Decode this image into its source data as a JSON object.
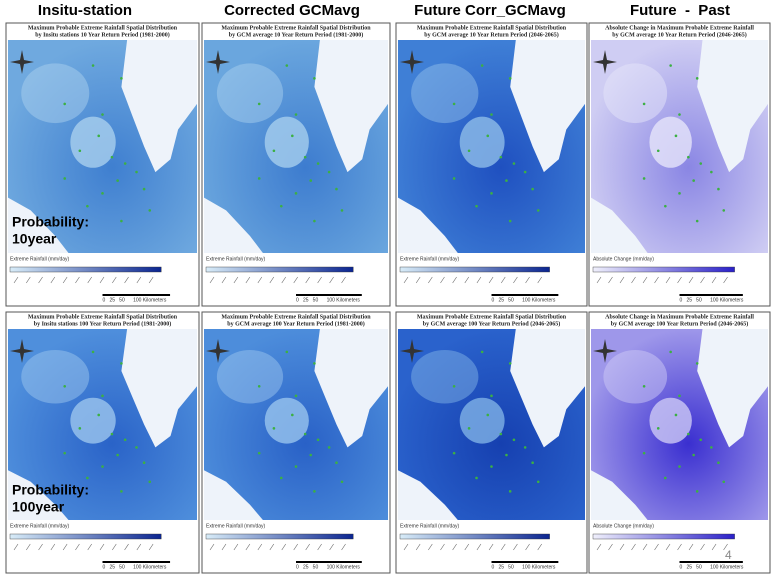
{
  "headers": [
    "Insitu-station",
    "Corrected GCMavg",
    "Future Corr_GCMavg",
    "Future  -  Past"
  ],
  "row_labels": [
    [
      "Probability:",
      "10year"
    ],
    [
      "Probability:",
      "100year"
    ]
  ],
  "page_number": "4",
  "panels": [
    {
      "title": [
        "Maximum Probable Extreme Rainfall Spatial Distribution",
        "by Insitu stations  10  Year Return Period (1981-2000)"
      ],
      "legend_title": "Extreme Rainfall (mm/day)",
      "scale_label": "0   25   50      100 Kilometers",
      "color": "#6fa9df",
      "light": "#a9d0ee",
      "dark": "#3f7fd0"
    },
    {
      "title": [
        "Maximum Probable Extreme Rainfall Spatial Distribution",
        "by GCM average  10  Year Return Period (1981-2000)"
      ],
      "legend_title": "Extreme Rainfall (mm/day)",
      "scale_label": "0   25   50      100 Kilometers",
      "color": "#6aa6de",
      "light": "#a6ceee",
      "dark": "#3d7ccf"
    },
    {
      "title": [
        "Maximum Probable Extreme Rainfall Spatial Distribution",
        "by GCM average  10  Year Return Period (2046-2065)"
      ],
      "legend_title": "Extreme Rainfall (mm/day)",
      "scale_label": "0   25   50      100 Kilometers",
      "color": "#3f7fd6",
      "light": "#8fbde9",
      "dark": "#1f50c0"
    },
    {
      "title": [
        "Absolute Change in Maximum Probable Extreme Rainfall",
        "by GCM average  10  Year Return Period (2046-2065)"
      ],
      "legend_title": "Absolute Change (mm/day)",
      "scale_label": "0   25   50      100 Kilometers",
      "color": "#cfcdf3",
      "light": "#e6e5fa",
      "dark": "#8a86e4"
    },
    {
      "title": [
        "Maximum Probable Extreme Rainfall Spatial Distribution",
        "by Insitu stations  100  Year Return Period (1981-2000)"
      ],
      "legend_title": "Extreme Rainfall (mm/day)",
      "scale_label": "0   25   50      100 Kilometers",
      "color": "#4f8fdc",
      "light": "#9cc6ee",
      "dark": "#2a63c8"
    },
    {
      "title": [
        "Maximum Probable Extreme Rainfall Spatial Distribution",
        "by GCM average  100  Year Return Period (1981-2000)"
      ],
      "legend_title": "Extreme Rainfall (mm/day)",
      "scale_label": "0   25   50      100 Kilometers",
      "color": "#4d8ddb",
      "light": "#99c4ed",
      "dark": "#2961c7"
    },
    {
      "title": [
        "Maximum Probable Extreme Rainfall Spatial Distribution",
        "by GCM average  100  Year Return Period (2046-2065)"
      ],
      "legend_title": "Extreme Rainfall (mm/day)",
      "scale_label": "0   25   50      100 Kilometers",
      "color": "#2a62cc",
      "light": "#7fb2e6",
      "dark": "#1640b0"
    },
    {
      "title": [
        "Absolute Change in Maximum Probable Extreme Rainfall",
        "by GCM average  100  Year Return Period (2046-2065)"
      ],
      "legend_title": "Absolute Change (mm/day)",
      "scale_label": "0   25   50      100 Kilometers",
      "color": "#9e97ea",
      "light": "#cdc9f5",
      "dark": "#3a2fd0"
    }
  ]
}
